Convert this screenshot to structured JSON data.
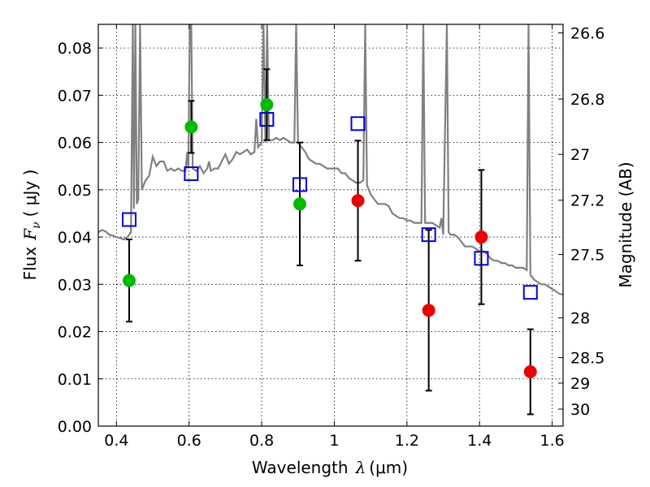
{
  "chart_data": {
    "type": "scatter",
    "xlabel": {
      "prefix": "Wavelength",
      "symbol": "λ",
      "unit": "(μm)"
    },
    "ylabel": {
      "prefix": "Flux",
      "symbol": "F",
      "subscript": "ν",
      "unit": "( μJy )"
    },
    "y2label": "Magnitude (AB)",
    "xlim": [
      0.35,
      1.63
    ],
    "ylim": [
      0.0,
      0.085
    ],
    "grid": true,
    "xticks": [
      0.4,
      0.6,
      0.8,
      1.0,
      1.2,
      1.4,
      1.6
    ],
    "xtick_labels": [
      "0.4",
      "0.6",
      "0.8",
      "1",
      "1.2",
      "1.4",
      "1.6"
    ],
    "yticks": [
      0.0,
      0.01,
      0.02,
      0.03,
      0.04,
      0.05,
      0.06,
      0.07,
      0.08
    ],
    "ytick_labels": [
      "0.00",
      "0.01",
      "0.02",
      "0.03",
      "0.04",
      "0.05",
      "0.06",
      "0.07",
      "0.08"
    ],
    "y2ticks": [
      {
        "label": "26.6",
        "flux": 0.0832
      },
      {
        "label": "26.8",
        "flux": 0.0692
      },
      {
        "label": "27",
        "flux": 0.0575
      },
      {
        "label": "27.2",
        "flux": 0.0478
      },
      {
        "label": "27.5",
        "flux": 0.0363
      },
      {
        "label": "28",
        "flux": 0.0229
      },
      {
        "label": "28.5",
        "flux": 0.0145
      },
      {
        "label": "29",
        "flux": 0.0091
      },
      {
        "label": "30",
        "flux": 0.0036
      }
    ],
    "colors": {
      "model": "#808080",
      "detected": "#00bb00",
      "undetected": "#ee0000",
      "model_band": "#0000dd",
      "errorbar": "#000000"
    },
    "model_spectrum": {
      "points": [
        [
          0.35,
          0.041
        ],
        [
          0.36,
          0.0415
        ],
        [
          0.37,
          0.0412
        ],
        [
          0.38,
          0.0405
        ],
        [
          0.39,
          0.0403
        ],
        [
          0.4,
          0.04
        ],
        [
          0.41,
          0.0398
        ],
        [
          0.42,
          0.0395
        ],
        [
          0.43,
          0.04
        ],
        [
          0.44,
          0.041
        ],
        [
          0.445,
          0.085
        ],
        [
          0.448,
          0.046
        ],
        [
          0.452,
          0.085
        ],
        [
          0.456,
          0.047
        ],
        [
          0.46,
          0.048
        ],
        [
          0.465,
          0.085
        ],
        [
          0.47,
          0.05
        ],
        [
          0.48,
          0.052
        ],
        [
          0.49,
          0.053
        ],
        [
          0.5,
          0.057
        ],
        [
          0.51,
          0.055
        ],
        [
          0.52,
          0.056
        ],
        [
          0.53,
          0.056
        ],
        [
          0.54,
          0.054
        ],
        [
          0.55,
          0.0545
        ],
        [
          0.56,
          0.054
        ],
        [
          0.57,
          0.0545
        ],
        [
          0.58,
          0.054
        ],
        [
          0.59,
          0.054
        ],
        [
          0.595,
          0.058
        ],
        [
          0.598,
          0.0545
        ],
        [
          0.602,
          0.085
        ],
        [
          0.606,
          0.085
        ],
        [
          0.61,
          0.0545
        ],
        [
          0.62,
          0.054
        ],
        [
          0.63,
          0.055
        ],
        [
          0.64,
          0.0535
        ],
        [
          0.65,
          0.0545
        ],
        [
          0.655,
          0.056
        ],
        [
          0.66,
          0.054
        ],
        [
          0.67,
          0.0545
        ],
        [
          0.68,
          0.0545
        ],
        [
          0.69,
          0.056
        ],
        [
          0.7,
          0.0575
        ],
        [
          0.71,
          0.0555
        ],
        [
          0.72,
          0.0565
        ],
        [
          0.73,
          0.058
        ],
        [
          0.74,
          0.0575
        ],
        [
          0.75,
          0.058
        ],
        [
          0.76,
          0.0585
        ],
        [
          0.77,
          0.0575
        ],
        [
          0.78,
          0.058
        ],
        [
          0.785,
          0.065
        ],
        [
          0.79,
          0.059
        ],
        [
          0.8,
          0.06
        ],
        [
          0.805,
          0.085
        ],
        [
          0.81,
          0.06
        ],
        [
          0.815,
          0.085
        ],
        [
          0.82,
          0.0605
        ],
        [
          0.83,
          0.0605
        ],
        [
          0.84,
          0.061
        ],
        [
          0.85,
          0.0605
        ],
        [
          0.86,
          0.061
        ],
        [
          0.87,
          0.0605
        ],
        [
          0.88,
          0.06
        ],
        [
          0.89,
          0.06
        ],
        [
          0.895,
          0.085
        ],
        [
          0.9,
          0.06
        ],
        [
          0.91,
          0.059
        ],
        [
          0.92,
          0.058
        ],
        [
          0.93,
          0.0565
        ],
        [
          0.94,
          0.056
        ],
        [
          0.95,
          0.0555
        ],
        [
          0.96,
          0.0555
        ],
        [
          0.97,
          0.055
        ],
        [
          0.98,
          0.0545
        ],
        [
          0.99,
          0.0545
        ],
        [
          1.0,
          0.0545
        ],
        [
          1.01,
          0.0545
        ],
        [
          1.02,
          0.0535
        ],
        [
          1.03,
          0.0535
        ],
        [
          1.04,
          0.0525
        ],
        [
          1.05,
          0.052
        ],
        [
          1.06,
          0.0515
        ],
        [
          1.07,
          0.0515
        ],
        [
          1.08,
          0.052
        ],
        [
          1.085,
          0.085
        ],
        [
          1.09,
          0.051
        ],
        [
          1.1,
          0.049
        ],
        [
          1.11,
          0.048
        ],
        [
          1.12,
          0.047
        ],
        [
          1.13,
          0.047
        ],
        [
          1.14,
          0.047
        ],
        [
          1.15,
          0.0465
        ],
        [
          1.16,
          0.045
        ],
        [
          1.17,
          0.0445
        ],
        [
          1.18,
          0.044
        ],
        [
          1.19,
          0.044
        ],
        [
          1.2,
          0.0435
        ],
        [
          1.21,
          0.0435
        ],
        [
          1.22,
          0.043
        ],
        [
          1.23,
          0.043
        ],
        [
          1.24,
          0.043
        ],
        [
          1.245,
          0.085
        ],
        [
          1.25,
          0.043
        ],
        [
          1.26,
          0.043
        ],
        [
          1.27,
          0.043
        ],
        [
          1.28,
          0.0425
        ],
        [
          1.29,
          0.042
        ],
        [
          1.295,
          0.044
        ],
        [
          1.3,
          0.0405
        ],
        [
          1.31,
          0.085
        ],
        [
          1.315,
          0.041
        ],
        [
          1.32,
          0.0405
        ],
        [
          1.33,
          0.0405
        ],
        [
          1.34,
          0.04
        ],
        [
          1.35,
          0.039
        ],
        [
          1.36,
          0.038
        ],
        [
          1.37,
          0.038
        ],
        [
          1.38,
          0.038
        ],
        [
          1.39,
          0.0375
        ],
        [
          1.4,
          0.037
        ],
        [
          1.41,
          0.037
        ],
        [
          1.42,
          0.0365
        ],
        [
          1.43,
          0.0355
        ],
        [
          1.44,
          0.035
        ],
        [
          1.45,
          0.035
        ],
        [
          1.46,
          0.0345
        ],
        [
          1.47,
          0.0345
        ],
        [
          1.48,
          0.034
        ],
        [
          1.49,
          0.034
        ],
        [
          1.5,
          0.0335
        ],
        [
          1.51,
          0.0335
        ],
        [
          1.52,
          0.0335
        ],
        [
          1.53,
          0.033
        ],
        [
          1.535,
          0.085
        ],
        [
          1.54,
          0.032
        ],
        [
          1.55,
          0.031
        ],
        [
          1.56,
          0.0305
        ],
        [
          1.57,
          0.03
        ],
        [
          1.58,
          0.03
        ],
        [
          1.59,
          0.0295
        ],
        [
          1.6,
          0.029
        ],
        [
          1.61,
          0.0285
        ],
        [
          1.62,
          0.028
        ],
        [
          1.63,
          0.0278
        ]
      ]
    },
    "detected": [
      {
        "x": 0.435,
        "y": 0.0308,
        "err": 0.0087
      },
      {
        "x": 0.606,
        "y": 0.0633,
        "err": 0.0055
      },
      {
        "x": 0.814,
        "y": 0.068,
        "err": 0.0075
      },
      {
        "x": 0.905,
        "y": 0.047,
        "err": 0.013
      }
    ],
    "undetected": [
      {
        "x": 1.065,
        "y": 0.0477,
        "err": 0.0127
      },
      {
        "x": 1.26,
        "y": 0.0245,
        "err": 0.017
      },
      {
        "x": 1.405,
        "y": 0.04,
        "err": 0.0142
      },
      {
        "x": 1.54,
        "y": 0.0115,
        "err": 0.009
      }
    ],
    "model_bands": [
      {
        "x": 0.435,
        "y": 0.0437
      },
      {
        "x": 0.606,
        "y": 0.0534
      },
      {
        "x": 0.814,
        "y": 0.0649
      },
      {
        "x": 0.905,
        "y": 0.0511
      },
      {
        "x": 1.065,
        "y": 0.064
      },
      {
        "x": 1.26,
        "y": 0.0405
      },
      {
        "x": 1.405,
        "y": 0.0355
      },
      {
        "x": 1.54,
        "y": 0.0283
      }
    ]
  }
}
